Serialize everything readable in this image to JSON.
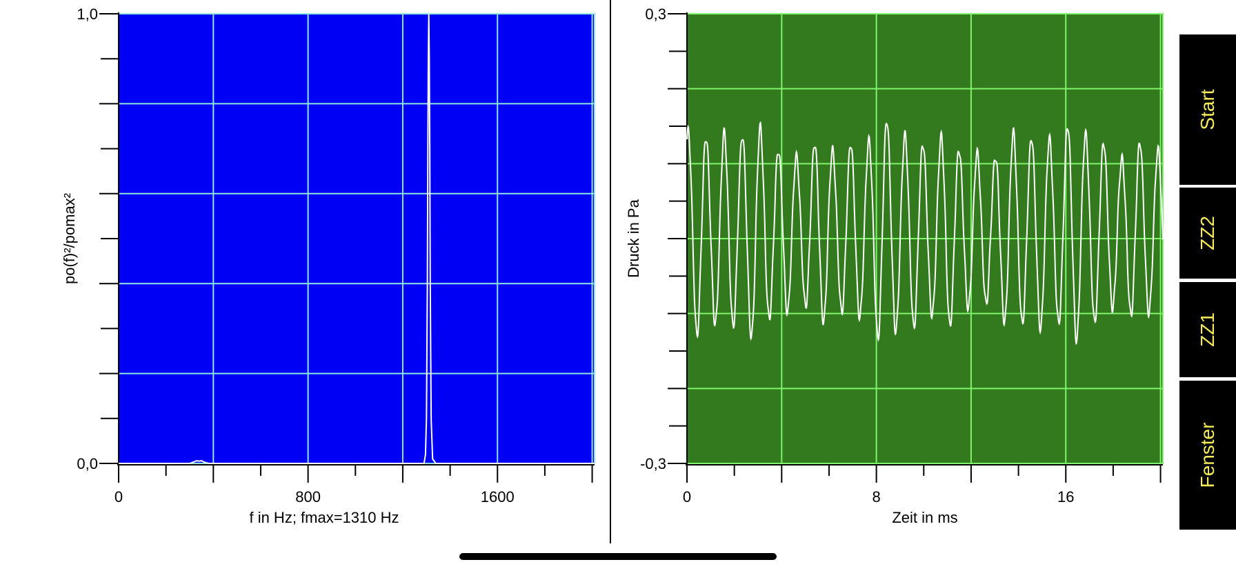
{
  "chart_data": [
    {
      "type": "line",
      "xlabel": "f in Hz; fmax=1310 Hz",
      "ylabel": "po(f)²/pomax²",
      "xlim": [
        0,
        2010
      ],
      "ylim": [
        0,
        1
      ],
      "x_ticks": [
        {
          "value": 0,
          "label": "0"
        },
        {
          "value": 800,
          "label": "800"
        },
        {
          "value": 1600,
          "label": "1600"
        }
      ],
      "y_ticks": [
        {
          "value": 0,
          "label": "0,0"
        },
        {
          "value": 1,
          "label": "1,0"
        }
      ],
      "grid": true,
      "x_grid": [
        0,
        400,
        800,
        1200,
        1600,
        2000
      ],
      "y_grid": [
        0,
        0.2,
        0.4,
        0.6,
        0.8,
        1.0
      ],
      "background_color": "#0000f5",
      "grid_color": "#8fe8e0",
      "line_color": "#ffffff",
      "series": [
        {
          "x": [
            0,
            300,
            320,
            330,
            340,
            350,
            360,
            380,
            1290,
            1296,
            1300,
            1304,
            1306,
            1308,
            1310,
            1312,
            1314,
            1316,
            1320,
            1326,
            1340,
            2010
          ],
          "y": [
            0,
            0,
            0.004,
            0.006,
            0.005,
            0.006,
            0.003,
            0,
            0,
            0.02,
            0.1,
            0.4,
            0.7,
            0.9,
            1.0,
            0.9,
            0.7,
            0.4,
            0.1,
            0.01,
            0,
            0
          ]
        }
      ]
    },
    {
      "type": "line",
      "xlabel": "Zeit in ms",
      "ylabel": "Druck in Pa",
      "xlim": [
        0,
        20.1
      ],
      "ylim": [
        -0.3,
        0.3
      ],
      "x_ticks": [
        {
          "value": 0,
          "label": "0"
        },
        {
          "value": 8,
          "label": "8"
        },
        {
          "value": 16,
          "label": "16"
        }
      ],
      "y_ticks": [
        {
          "value": -0.3,
          "label": "-0,3"
        },
        {
          "value": 0.3,
          "label": "0,3"
        }
      ],
      "grid": true,
      "x_grid": [
        0,
        4,
        8,
        12,
        16,
        20
      ],
      "y_grid": [
        -0.3,
        -0.2,
        -0.1,
        0,
        0.1,
        0.2,
        0.3
      ],
      "background_color": "#337a1e",
      "grid_color": "#7ef56a",
      "line_color": "#ffffff",
      "series": [
        {
          "signal": {
            "frequency_hz": 1310,
            "amplitude": 0.12,
            "offset": 0.01,
            "x_start": 0,
            "x_end": 20.1
          }
        }
      ]
    }
  ],
  "buttons": {
    "start": "Start",
    "zz2": "ZZ2",
    "zz1": "ZZ1",
    "fenster": "Fenster"
  }
}
